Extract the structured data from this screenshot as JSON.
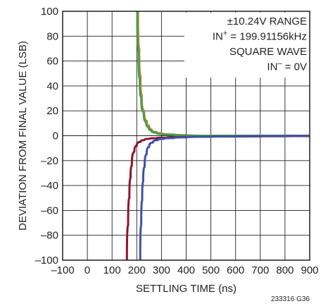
{
  "chart_data": {
    "type": "line",
    "title": "",
    "xlabel": "SETTLING TIME (ns)",
    "ylabel": "DEVIATION FROM FINAL VALUE (LSB)",
    "xlim": [
      -100,
      900
    ],
    "ylim": [
      -100,
      100
    ],
    "x_ticks": [
      -100,
      0,
      100,
      200,
      300,
      400,
      500,
      600,
      700,
      800,
      900
    ],
    "y_ticks": [
      -100,
      -80,
      -60,
      -40,
      -20,
      0,
      20,
      40,
      60,
      80,
      100
    ],
    "x_tick_labels": [
      "–100",
      "0",
      "100",
      "200",
      "300",
      "400",
      "500",
      "600",
      "700",
      "800",
      "900"
    ],
    "y_tick_labels": [
      "–100",
      "–80",
      "–60",
      "–40",
      "–20",
      "0",
      "20",
      "40",
      "60",
      "80",
      "100"
    ],
    "grid": true,
    "annotation": {
      "line1": "±10.24V RANGE",
      "line2_pre": "IN",
      "line2_sup": "+",
      "line2_post": " = 199.91156kHz",
      "line3": "SQUARE WAVE",
      "line4_pre": "IN",
      "line4_sup": "–",
      "line4_post": " = 0V"
    },
    "figure_id": "233316 G36",
    "series": [
      {
        "color": "#e2742f",
        "x": [
          205,
          210,
          215,
          220,
          230,
          240,
          250,
          260,
          280,
          300,
          350,
          400,
          500,
          600,
          700,
          800,
          900
        ],
        "y": [
          100,
          70,
          48,
          33,
          20,
          12,
          8,
          5,
          3,
          2,
          1,
          0.5,
          0,
          0,
          0,
          0,
          0
        ]
      },
      {
        "color": "#3fa24a",
        "x": [
          202,
          207,
          212,
          218,
          228,
          238,
          248,
          258,
          278,
          300,
          350,
          400,
          500,
          600,
          700,
          800,
          900
        ],
        "y": [
          100,
          68,
          46,
          31,
          19,
          11,
          7,
          4.5,
          2.5,
          1.5,
          0.8,
          0.3,
          0,
          0,
          0,
          0,
          0
        ]
      },
      {
        "color": "#8f1430",
        "x": [
          160,
          165,
          170,
          175,
          180,
          190,
          200,
          215,
          230,
          250,
          280,
          320,
          400,
          500,
          600,
          700,
          800,
          900
        ],
        "y": [
          -100,
          -72,
          -50,
          -34,
          -24,
          -13,
          -8,
          -5,
          -3.5,
          -2.5,
          -2,
          -1.5,
          -1,
          -0.8,
          -0.6,
          -0.5,
          -0.4,
          -0.3
        ]
      },
      {
        "color": "#3f51a8",
        "x": [
          214,
          218,
          222,
          226,
          232,
          240,
          250,
          265,
          285,
          310,
          350,
          400,
          500,
          600,
          700,
          800,
          900
        ],
        "y": [
          -100,
          -72,
          -52,
          -37,
          -25,
          -15,
          -9,
          -5.5,
          -3.5,
          -2.5,
          -1.8,
          -1.3,
          -0.8,
          -0.5,
          -0.3,
          -0.2,
          0
        ]
      }
    ]
  }
}
